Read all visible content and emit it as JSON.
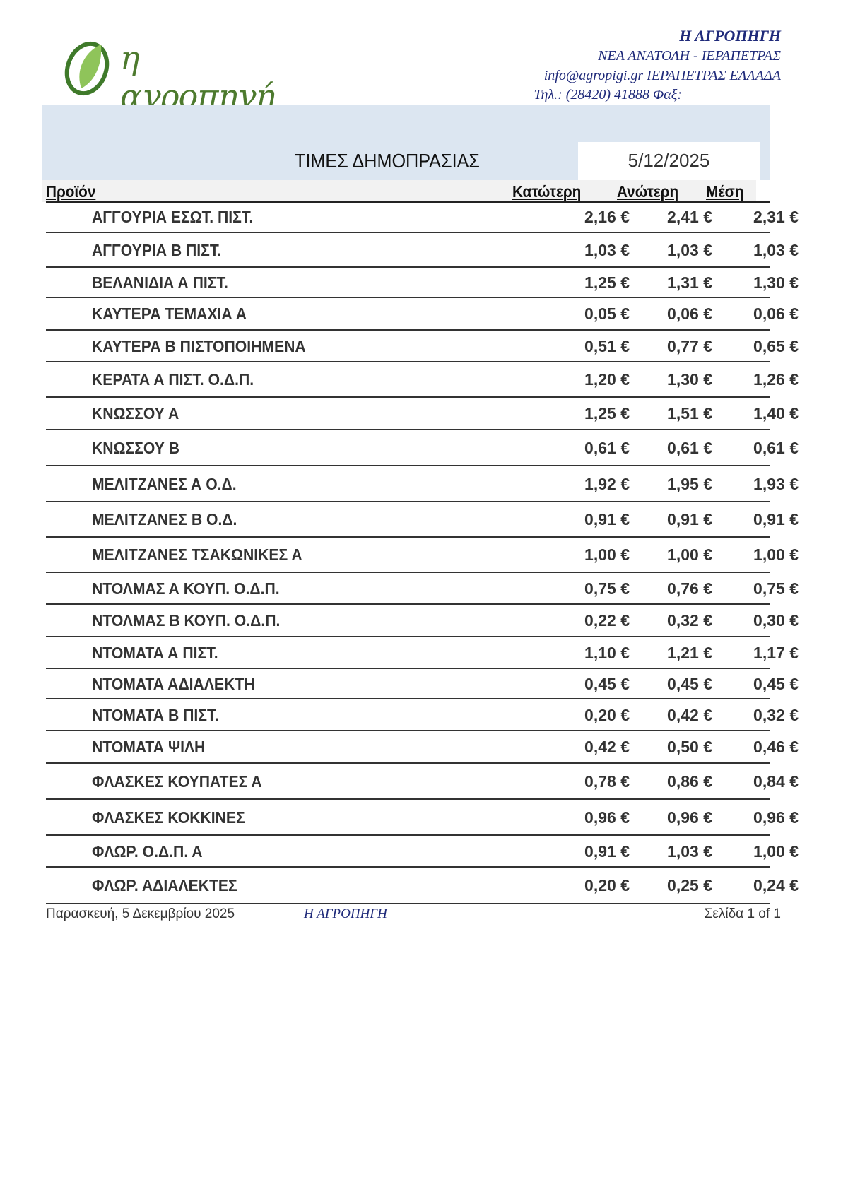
{
  "header": {
    "logo_text": "η αγροπηγή",
    "company": "Η ΑΓΡΟΠΗΓΗ",
    "address": "ΝΕΑ ΑΝΑΤΟΛΗ - ΙΕΡΑΠΕΤΡΑΣ",
    "email_line": "info@agropigi.gr  ΙΕΡΑΠΕΤΡΑΣ  ΕΛΛΑΔΑ",
    "phone_line": "Τηλ.: (28420)  41888  Φαξ:"
  },
  "title": "ΤΙΜΕΣ ΔΗΜΟΠΡΑΣΙΑΣ",
  "date": "5/12/2025",
  "columns": {
    "product": "Προϊόν",
    "low": "Κατώτερη",
    "high": "Ανώτερη",
    "avg": "Μέση"
  },
  "rows": [
    {
      "name": "ΑΓΓΟΥΡΙΑ ΕΣΩΤ. ΠΙΣΤ.",
      "low": "2,16 €",
      "high": "2,41 €",
      "avg": "2,31 €"
    },
    {
      "name": "ΑΓΓΟΥΡΙΑ Β ΠΙΣΤ.",
      "low": "1,03 €",
      "high": "1,03 €",
      "avg": "1,03 €"
    },
    {
      "name": "ΒΕΛΑΝΙΔΙΑ Α ΠΙΣΤ.",
      "low": "1,25 €",
      "high": "1,31 €",
      "avg": "1,30 €"
    },
    {
      "name": "ΚΑΥΤΕΡΑ ΤΕΜΑΧΙΑ Α",
      "low": "0,05 €",
      "high": "0,06 €",
      "avg": "0,06 €"
    },
    {
      "name": "ΚΑΥΤΕΡΑ  Β ΠΙΣΤΟΠΟΙΗΜΕΝΑ",
      "low": "0,51 €",
      "high": "0,77 €",
      "avg": "0,65 €"
    },
    {
      "name": "ΚΕΡΑΤΑ Α  ΠΙΣΤ. Ο.Δ.Π.",
      "low": "1,20 €",
      "high": "1,30 €",
      "avg": "1,26 €"
    },
    {
      "name": "ΚΝΩΣΣΟΥ Α",
      "low": "1,25 €",
      "high": "1,51 €",
      "avg": "1,40 €"
    },
    {
      "name": "ΚΝΩΣΣΟΥ Β",
      "low": "0,61 €",
      "high": "0,61 €",
      "avg": "0,61 €"
    },
    {
      "name": "ΜΕΛΙΤΖΑΝΕΣ Α Ο.Δ.",
      "low": "1,92 €",
      "high": "1,95 €",
      "avg": "1,93 €"
    },
    {
      "name": "ΜΕΛΙΤΖΑΝΕΣ Β Ο.Δ.",
      "low": "0,91 €",
      "high": "0,91 €",
      "avg": "0,91 €"
    },
    {
      "name": "ΜΕΛΙΤΖΑΝΕΣ ΤΣΑΚΩΝΙΚΕΣ Α",
      "low": "1,00 €",
      "high": "1,00 €",
      "avg": "1,00 €"
    },
    {
      "name": "ΝΤΟΛΜΑΣ Α ΚΟΥΠ. Ο.Δ.Π.",
      "low": "0,75 €",
      "high": "0,76 €",
      "avg": "0,75 €"
    },
    {
      "name": "ΝΤΟΛΜΑΣ Β ΚΟΥΠ. Ο.Δ.Π.",
      "low": "0,22 €",
      "high": "0,32 €",
      "avg": "0,30 €"
    },
    {
      "name": "ΝΤΟΜΑΤΑ Α ΠΙΣΤ.",
      "low": "1,10 €",
      "high": "1,21 €",
      "avg": "1,17 €"
    },
    {
      "name": "ΝΤΟΜΑΤΑ ΑΔΙΑΛΕΚΤΗ",
      "low": "0,45 €",
      "high": "0,45 €",
      "avg": "0,45 €"
    },
    {
      "name": "ΝΤΟΜΑΤΑ Β  ΠΙΣΤ.",
      "low": "0,20 €",
      "high": "0,42 €",
      "avg": "0,32 €"
    },
    {
      "name": "ΝΤΟΜΑΤΑ ΨΙΛΗ",
      "low": "0,42 €",
      "high": "0,50 €",
      "avg": "0,46 €"
    },
    {
      "name": "ΦΛΑΣΚΕΣ ΚΟΥΠΑΤΕΣ Α",
      "low": "0,78 €",
      "high": "0,86 €",
      "avg": "0,84 €"
    },
    {
      "name": "ΦΛΑΣΚΕΣ ΚΟΚΚΙΝΕΣ",
      "low": "0,96 €",
      "high": "0,96 €",
      "avg": "0,96 €"
    },
    {
      "name": "ΦΛΩΡ. Ο.Δ.Π. Α",
      "low": "0,91 €",
      "high": "1,03 €",
      "avg": "1,00 €"
    },
    {
      "name": "ΦΛΩΡ. ΑΔΙΑΛΕΚΤΕΣ",
      "low": "0,20 €",
      "high": "0,25 €",
      "avg": "0,24 €"
    }
  ],
  "footer": {
    "date": "Παρασκευή, 5 Δεκεμβρίου 2025",
    "company": "Η ΑΓΡΟΠΗΓΗ",
    "page": "Σελίδα 1 of 1"
  }
}
